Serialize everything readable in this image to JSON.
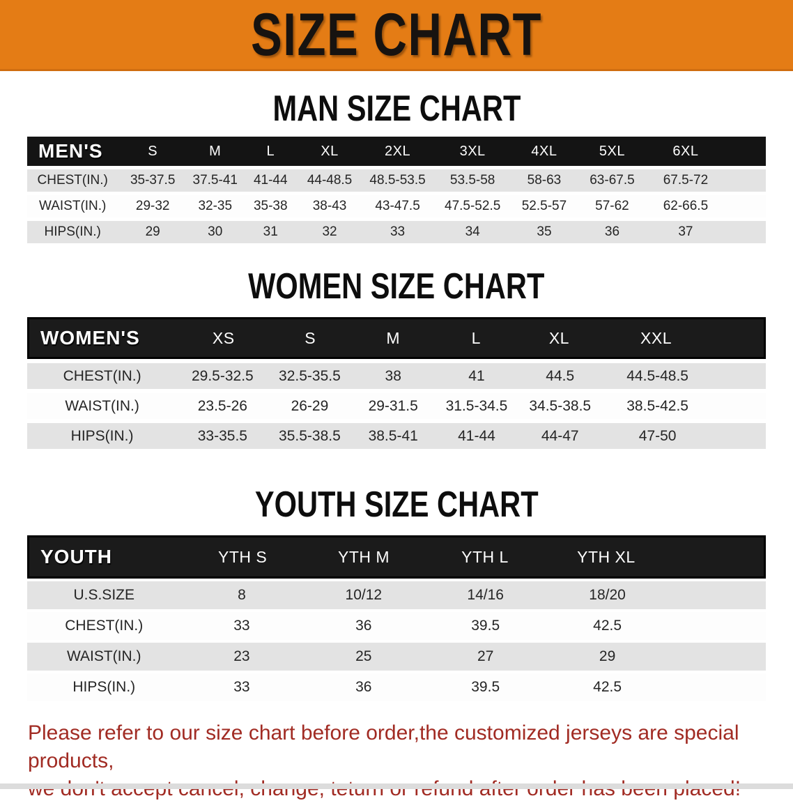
{
  "banner": {
    "title": "SIZE CHART"
  },
  "colors": {
    "banner_orange": "#e47c15",
    "header_black": "#141414",
    "row_gray": "#e3e3e3",
    "disclaimer_red": "#a12b23"
  },
  "sections": [
    {
      "id": "men",
      "heading": "MAN SIZE CHART",
      "group_label": "MEN'S",
      "columns": [
        "S",
        "M",
        "L",
        "XL",
        "2XL",
        "3XL",
        "4XL",
        "5XL",
        "6XL"
      ],
      "rows": [
        {
          "label": "CHEST(IN.)",
          "values": [
            "35-37.5",
            "37.5-41",
            "41-44",
            "44-48.5",
            "48.5-53.5",
            "53.5-58",
            "58-63",
            "63-67.5",
            "67.5-72"
          ]
        },
        {
          "label": "WAIST(IN.)",
          "values": [
            "29-32",
            "32-35",
            "35-38",
            "38-43",
            "43-47.5",
            "47.5-52.5",
            "52.5-57",
            "57-62",
            "62-66.5"
          ]
        },
        {
          "label": "HIPS(IN.)",
          "values": [
            "29",
            "30",
            "31",
            "32",
            "33",
            "34",
            "35",
            "36",
            "37"
          ]
        }
      ]
    },
    {
      "id": "women",
      "heading": "WOMEN SIZE CHART",
      "group_label": "WOMEN'S",
      "columns": [
        "XS",
        "S",
        "M",
        "L",
        "XL",
        "XXL"
      ],
      "rows": [
        {
          "label": "CHEST(IN.)",
          "values": [
            "29.5-32.5",
            "32.5-35.5",
            "38",
            "41",
            "44.5",
            "44.5-48.5"
          ]
        },
        {
          "label": "WAIST(IN.)",
          "values": [
            "23.5-26",
            "26-29",
            "29-31.5",
            "31.5-34.5",
            "34.5-38.5",
            "38.5-42.5"
          ]
        },
        {
          "label": "HIPS(IN.)",
          "values": [
            "33-35.5",
            "35.5-38.5",
            "38.5-41",
            "41-44",
            "44-47",
            "47-50"
          ]
        }
      ]
    },
    {
      "id": "youth",
      "heading": "YOUTH SIZE CHART",
      "group_label": "YOUTH",
      "columns": [
        "YTH S",
        "YTH M",
        "YTH L",
        "YTH XL"
      ],
      "rows": [
        {
          "label": "U.S.SIZE",
          "values": [
            "8",
            "10/12",
            "14/16",
            "18/20"
          ]
        },
        {
          "label": "CHEST(IN.)",
          "values": [
            "33",
            "36",
            "39.5",
            "42.5"
          ]
        },
        {
          "label": "WAIST(IN.)",
          "values": [
            "23",
            "25",
            "27",
            "29"
          ]
        },
        {
          "label": "HIPS(IN.)",
          "values": [
            "33",
            "36",
            "39.5",
            "42.5"
          ]
        }
      ]
    }
  ],
  "disclaimer": {
    "lines": [
      "Please refer to our size chart before order,the customized jerseys are special products,",
      "we don't accept cancel, change, teturn or refund after order has been placed!"
    ]
  }
}
